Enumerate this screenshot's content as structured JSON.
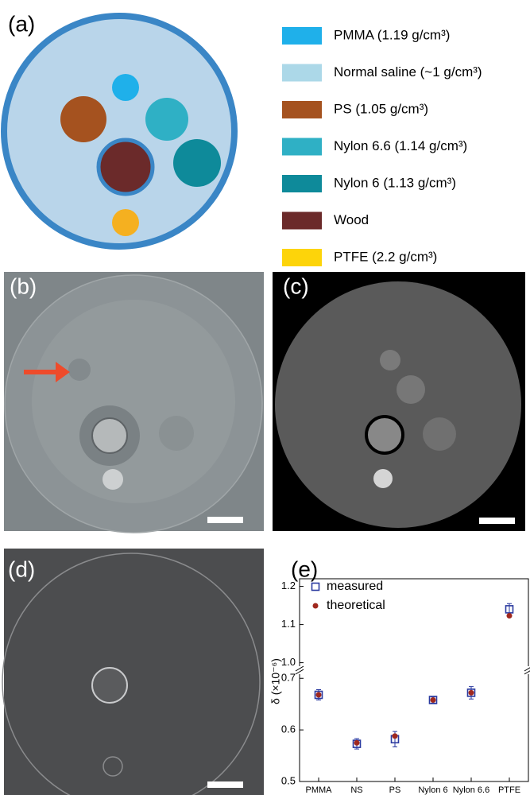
{
  "panels": {
    "a": "(a)",
    "b": "(b)",
    "c": "(c)",
    "d": "(d)",
    "e": "(e)"
  },
  "legend": [
    {
      "label": "PMMA (1.19 g/cm³)",
      "color": "#1fb0ea"
    },
    {
      "label": "Normal saline (~1 g/cm³)",
      "color": "#acd8e8"
    },
    {
      "label": "PS (1.05 g/cm³)",
      "color": "#a5521f"
    },
    {
      "label": "Nylon 6.6 (1.14 g/cm³)",
      "color": "#2fb0c5"
    },
    {
      "label": "Nylon 6 (1.13 g/cm³)",
      "color": "#0e8a9a"
    },
    {
      "label": "Wood",
      "color": "#6b2a2a"
    },
    {
      "label": "PTFE (2.2 g/cm³)",
      "color": "#fdd40a"
    }
  ],
  "chart_data": {
    "type": "scatter",
    "ylabel": "δ (×10⁻⁶)",
    "categories": [
      "PMMA",
      "NS",
      "PS",
      "Nylon 6",
      "Nylon 6.6",
      "PTFE"
    ],
    "series": [
      {
        "name": "measured",
        "color": "#2b3aa0",
        "values": [
          0.668,
          0.573,
          0.582,
          0.658,
          0.672,
          1.14
        ],
        "errors": [
          0.01,
          0.01,
          0.015,
          0.006,
          0.012,
          0.015
        ]
      },
      {
        "name": "theoretical",
        "color": "#a0281e",
        "values": [
          0.668,
          0.575,
          0.588,
          0.658,
          0.672,
          1.123
        ]
      }
    ],
    "ylim": [
      0.5,
      1.22
    ],
    "ybreak": [
      0.705,
      0.995
    ],
    "yticks": [
      0.5,
      0.6,
      0.7,
      {
        "value": 1,
        "label": "1.0"
      },
      1.1,
      1.2
    ],
    "legend": "upper left"
  }
}
